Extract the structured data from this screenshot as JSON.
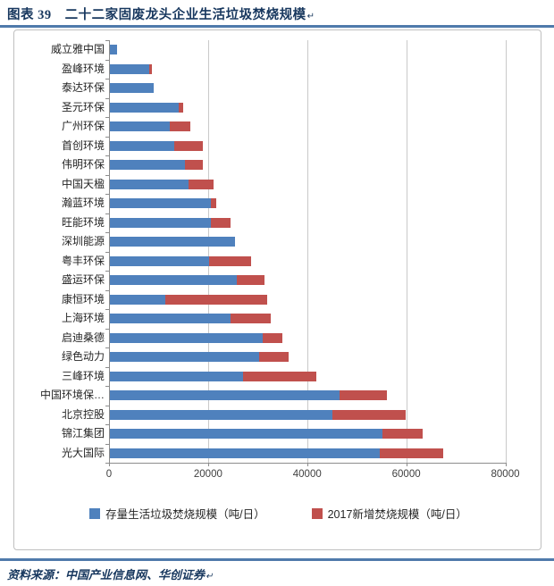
{
  "header": {
    "title": "图表 39　二十二家固废龙头企业生活垃圾焚烧规模",
    "paragraph_mark": "↵"
  },
  "footer": {
    "source_label": "资料来源：",
    "source_text": "中国产业信息网、华创证券",
    "paragraph_mark": "↵"
  },
  "colors": {
    "bar_blue": "#4F81BD",
    "bar_red": "#C0504D",
    "title_text": "#17375E",
    "rule_blue": "#4F7AAB",
    "grid_gray": "#C9C9C9",
    "axis_gray": "#8C8C8C",
    "frame_border": "#BFBFBF"
  },
  "chart_data": {
    "type": "bar",
    "orientation": "horizontal",
    "stacked": true,
    "title": "",
    "xlabel": "",
    "ylabel": "",
    "xlim": [
      0,
      80000
    ],
    "grid": "vertical-only",
    "legend_position": "bottom",
    "x_ticks": [
      "0",
      "20000",
      "40000",
      "60000",
      "80000"
    ],
    "x_tick_values": [
      0,
      20000,
      40000,
      60000,
      80000
    ],
    "categories": [
      "威立雅中国",
      "盈峰环境",
      "泰达环保",
      "圣元环保",
      "广州环保",
      "首创环境",
      "伟明环保",
      "中国天楹",
      "瀚蓝环境",
      "旺能环境",
      "深圳能源",
      "粤丰环保",
      "盛运环保",
      "康恒环境",
      "上海环境",
      "启迪桑德",
      "绿色动力",
      "三峰环境",
      "中国环境保…",
      "北京控股",
      "锦江集团",
      "光大国际"
    ],
    "series": [
      {
        "name": "存量生活垃圾焚烧规模（吨/日）",
        "color": "#4F81BD",
        "values": [
          1400,
          8000,
          8800,
          13900,
          12100,
          12900,
          15100,
          15900,
          20400,
          20400,
          25300,
          20100,
          25600,
          11100,
          24400,
          30800,
          30100,
          26900,
          46400,
          45000,
          55100,
          54400
        ]
      },
      {
        "name": "2017新增焚烧规模（吨/日）",
        "color": "#C0504D",
        "values": [
          0,
          500,
          0,
          900,
          4100,
          5800,
          3600,
          5100,
          1000,
          4000,
          0,
          8400,
          5600,
          20700,
          8000,
          4100,
          6000,
          14700,
          9600,
          14700,
          8000,
          12800
        ]
      }
    ]
  }
}
